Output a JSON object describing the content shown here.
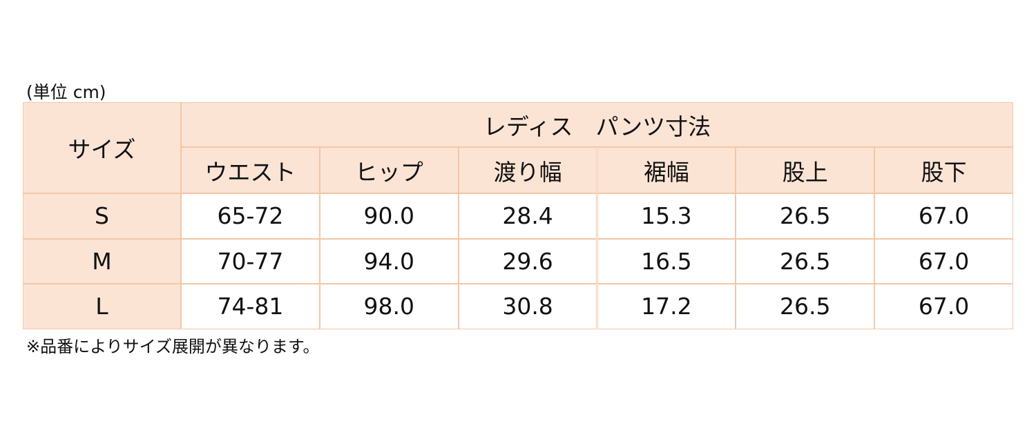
{
  "unit_note": "(単位 cm)",
  "table": {
    "corner": "サイズ",
    "group_header": "レディス　パンツ寸法",
    "columns": [
      "ウエスト",
      "ヒップ",
      "渡り幅",
      "裾幅",
      "股上",
      "股下"
    ],
    "rows": [
      {
        "size": "S",
        "values": [
          "65-72",
          "90.0",
          "28.4",
          "15.3",
          "26.5",
          "67.0"
        ]
      },
      {
        "size": "M",
        "values": [
          "70-77",
          "94.0",
          "29.6",
          "16.5",
          "26.5",
          "67.0"
        ]
      },
      {
        "size": "L",
        "values": [
          "74-81",
          "98.0",
          "30.8",
          "17.2",
          "26.5",
          "67.0"
        ]
      }
    ]
  },
  "footnote": "※品番によりサイズ展開が異なります。"
}
